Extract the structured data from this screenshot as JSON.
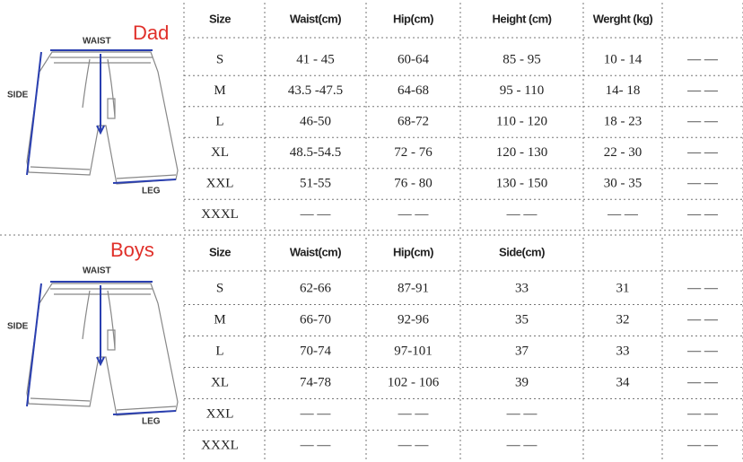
{
  "sections": [
    {
      "label": "Dad",
      "diagram": {
        "waist": "WAIST",
        "side": "SIDE",
        "leg": "LEG"
      },
      "table": {
        "header": [
          "Size",
          "Waist(cm)",
          "Hip(cm)",
          "Height (cm)",
          "Werght (kg)",
          null
        ],
        "rows": [
          [
            "S",
            "41 - 45",
            "60-64",
            "85 - 95",
            "10 - 14",
            "— —"
          ],
          [
            "M",
            "43.5 -47.5",
            "64-68",
            "95 - 110",
            "14- 18",
            "— —"
          ],
          [
            "L",
            "46-50",
            "68-72",
            "110 - 120",
            "18 - 23",
            "— —"
          ],
          [
            "XL",
            "48.5-54.5",
            "72 - 76",
            "120 - 130",
            "22 - 30",
            "— —"
          ],
          [
            "XXL",
            "51-55",
            "76 - 80",
            "130 - 150",
            "30 - 35",
            "— —"
          ],
          [
            "XXXL",
            "— —",
            "— —",
            "— —",
            "— —",
            "— —"
          ]
        ]
      }
    },
    {
      "label": "Boys",
      "diagram": {
        "waist": "WAIST",
        "side": "SIDE",
        "leg": "LEG"
      },
      "table": {
        "header": [
          "Size",
          "Waist(cm)",
          "Hip(cm)",
          "Side(cm)",
          null,
          null
        ],
        "rows": [
          [
            "S",
            "62-66",
            "87-91",
            "33",
            "31",
            "— —"
          ],
          [
            "M",
            "66-70",
            "92-96",
            "35",
            "32",
            "— —"
          ],
          [
            "L",
            "70-74",
            "97-101",
            "37",
            "33",
            "— —"
          ],
          [
            "XL",
            "74-78",
            "102 - 106",
            "39",
            "34",
            "— —"
          ],
          [
            "XXL",
            "— —",
            "— —",
            "— —",
            null,
            "— —"
          ],
          [
            "XXXL",
            "— —",
            "— —",
            "— —",
            null,
            "— —"
          ]
        ]
      }
    }
  ]
}
